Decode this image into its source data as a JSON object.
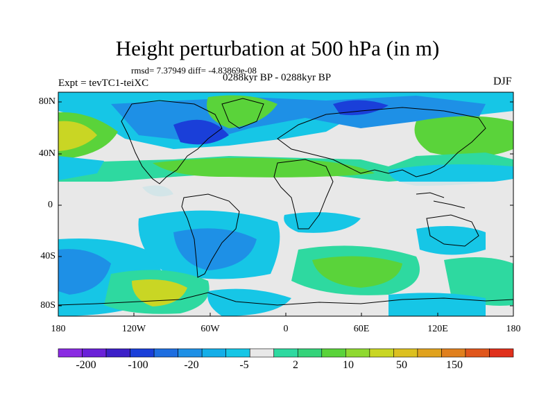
{
  "title": "Height perturbation at 500 hPa (in m)",
  "stats": "rmsd= 7.37949 diff= -4.83869e-08",
  "period": "0288kyr BP - 0288kyr BP",
  "experiment": "Expt = tevTC1-teiXC",
  "season": "DJF",
  "lat_labels": [
    "80N",
    "40N",
    "0",
    "40S",
    "80S"
  ],
  "lon_labels": [
    "180",
    "120W",
    "60W",
    "0",
    "60E",
    "120E",
    "180"
  ],
  "colorbar": {
    "labels": [
      "-200",
      "-100",
      "-20",
      "-5",
      "2",
      "10",
      "50",
      "150"
    ],
    "colors": [
      "#8a2be2",
      "#6a21d8",
      "#3c1fc8",
      "#1a3fd9",
      "#1e6ee0",
      "#1e90e6",
      "#14aee8",
      "#16c6e6",
      "#e8e8e8",
      "#2ed9a0",
      "#34d37a",
      "#5ad33a",
      "#8fd930",
      "#c9d624",
      "#dcc020",
      "#e0a21e",
      "#e0801e",
      "#e0561c",
      "#e0301c"
    ]
  },
  "colors": {
    "neutral": "#e8e8e8",
    "light_blue": "#16c6e6",
    "mid_blue": "#1e90e6",
    "deep_blue": "#1a3fd9",
    "teal": "#2ed9a0",
    "green": "#5ad33a",
    "yellow_green": "#c9d624",
    "coast": "#000000"
  }
}
